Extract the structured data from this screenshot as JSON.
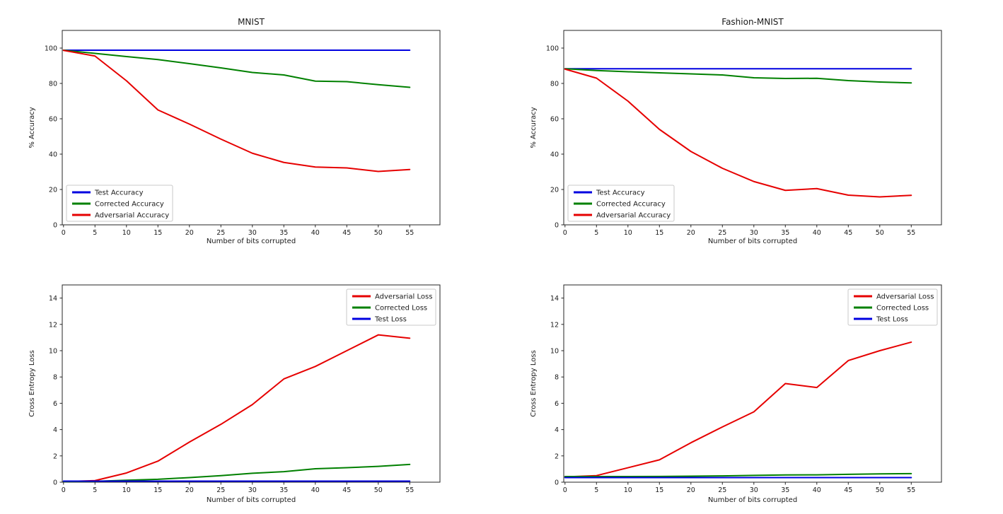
{
  "figure": {
    "background": "#ffffff"
  },
  "colors": {
    "test": "#0000e0",
    "corrected": "#008000",
    "adversarial": "#e60000",
    "spine": "#262626",
    "text": "#1a1a1a",
    "legend_border": "#c8c8c8",
    "legend_bg": "#ffffff"
  },
  "chart_data": [
    {
      "id": "mnist-accuracy",
      "type": "line",
      "title": "MNIST",
      "xlabel": "Number of bits corrupted",
      "ylabel": "% Accuracy",
      "x": [
        0,
        5,
        10,
        15,
        20,
        25,
        30,
        35,
        40,
        45,
        50,
        55
      ],
      "xticks": [
        0,
        5,
        10,
        15,
        20,
        25,
        30,
        35,
        40,
        45,
        50,
        55
      ],
      "yticks": [
        0,
        20,
        40,
        60,
        80,
        100
      ],
      "xlim": [
        -0.2,
        59.8
      ],
      "ylim": [
        0,
        110
      ],
      "grid": false,
      "legend_position": "lower-left",
      "series": [
        {
          "key": "test",
          "name": "Test Accuracy",
          "values": [
            98.8,
            98.8,
            98.8,
            98.8,
            98.8,
            98.8,
            98.8,
            98.8,
            98.8,
            98.8,
            98.8,
            98.8
          ]
        },
        {
          "key": "corrected",
          "name": "Corrected Accuracy",
          "values": [
            98.8,
            97.0,
            95.2,
            93.5,
            91.2,
            88.8,
            86.2,
            84.8,
            81.3,
            81.0,
            79.3,
            77.8
          ]
        },
        {
          "key": "adversarial",
          "name": "Adversarial Accuracy",
          "values": [
            98.7,
            95.5,
            81.5,
            65.0,
            57.0,
            48.5,
            40.5,
            35.3,
            32.7,
            32.2,
            30.2,
            31.3
          ]
        }
      ]
    },
    {
      "id": "fashion-mnist-accuracy",
      "type": "line",
      "title": "Fashion-MNIST",
      "xlabel": "Number of bits corrupted",
      "ylabel": "% Accuracy",
      "x": [
        0,
        5,
        10,
        15,
        20,
        25,
        30,
        35,
        40,
        45,
        50,
        55
      ],
      "xticks": [
        0,
        5,
        10,
        15,
        20,
        25,
        30,
        35,
        40,
        45,
        50,
        55
      ],
      "yticks": [
        0,
        20,
        40,
        60,
        80,
        100
      ],
      "xlim": [
        -0.2,
        59.8
      ],
      "ylim": [
        0,
        110
      ],
      "grid": false,
      "legend_position": "lower-left",
      "series": [
        {
          "key": "test",
          "name": "Test Accuracy",
          "values": [
            88.3,
            88.3,
            88.3,
            88.3,
            88.3,
            88.3,
            88.3,
            88.3,
            88.3,
            88.3,
            88.3,
            88.3
          ]
        },
        {
          "key": "corrected",
          "name": "Corrected Accuracy",
          "values": [
            88.3,
            87.3,
            86.6,
            86.0,
            85.4,
            84.8,
            83.2,
            82.8,
            82.9,
            81.6,
            80.8,
            80.3
          ]
        },
        {
          "key": "adversarial",
          "name": "Adversarial Accuracy",
          "values": [
            88.1,
            83.0,
            70.0,
            54.0,
            41.5,
            32.0,
            24.5,
            19.5,
            20.5,
            16.8,
            15.8,
            16.7
          ]
        }
      ]
    },
    {
      "id": "mnist-loss",
      "type": "line",
      "title": "",
      "xlabel": "Number of bits corrupted",
      "ylabel": "Cross Entropy Loss",
      "x": [
        0,
        5,
        10,
        15,
        20,
        25,
        30,
        35,
        40,
        45,
        50,
        55
      ],
      "xticks": [
        0,
        5,
        10,
        15,
        20,
        25,
        30,
        35,
        40,
        45,
        50,
        55
      ],
      "yticks": [
        0,
        2,
        4,
        6,
        8,
        10,
        12,
        14
      ],
      "xlim": [
        -0.2,
        59.8
      ],
      "ylim": [
        0,
        15
      ],
      "grid": false,
      "legend_position": "upper-right",
      "series": [
        {
          "key": "adversarial",
          "name": "Adversarial Loss",
          "values": [
            0.05,
            0.12,
            0.7,
            1.6,
            3.05,
            4.4,
            5.9,
            7.85,
            8.8,
            10.0,
            11.2,
            10.95
          ]
        },
        {
          "key": "corrected",
          "name": "Corrected Loss",
          "values": [
            0.05,
            0.07,
            0.15,
            0.22,
            0.35,
            0.5,
            0.68,
            0.8,
            1.02,
            1.1,
            1.2,
            1.35
          ]
        },
        {
          "key": "test",
          "name": "Test Loss",
          "values": [
            0.08,
            0.08,
            0.08,
            0.08,
            0.08,
            0.08,
            0.08,
            0.08,
            0.08,
            0.08,
            0.08,
            0.08
          ]
        }
      ]
    },
    {
      "id": "fashion-mnist-loss",
      "type": "line",
      "title": "",
      "xlabel": "Number of bits corrupted",
      "ylabel": "Cross Entropy Loss",
      "x": [
        0,
        5,
        10,
        15,
        20,
        25,
        30,
        35,
        40,
        45,
        50,
        55
      ],
      "xticks": [
        0,
        5,
        10,
        15,
        20,
        25,
        30,
        35,
        40,
        45,
        50,
        55
      ],
      "yticks": [
        0,
        2,
        4,
        6,
        8,
        10,
        12,
        14
      ],
      "xlim": [
        -0.2,
        59.8
      ],
      "ylim": [
        0,
        15
      ],
      "grid": false,
      "legend_position": "upper-right",
      "series": [
        {
          "key": "adversarial",
          "name": "Adversarial Loss",
          "values": [
            0.4,
            0.5,
            1.1,
            1.7,
            3.0,
            4.2,
            5.35,
            7.5,
            7.2,
            9.25,
            10.0,
            10.65
          ]
        },
        {
          "key": "corrected",
          "name": "Corrected Loss",
          "values": [
            0.43,
            0.43,
            0.43,
            0.44,
            0.46,
            0.48,
            0.52,
            0.55,
            0.56,
            0.6,
            0.63,
            0.65
          ]
        },
        {
          "key": "test",
          "name": "Test Loss",
          "values": [
            0.35,
            0.35,
            0.35,
            0.35,
            0.35,
            0.35,
            0.35,
            0.35,
            0.35,
            0.35,
            0.35,
            0.35
          ]
        }
      ]
    }
  ]
}
